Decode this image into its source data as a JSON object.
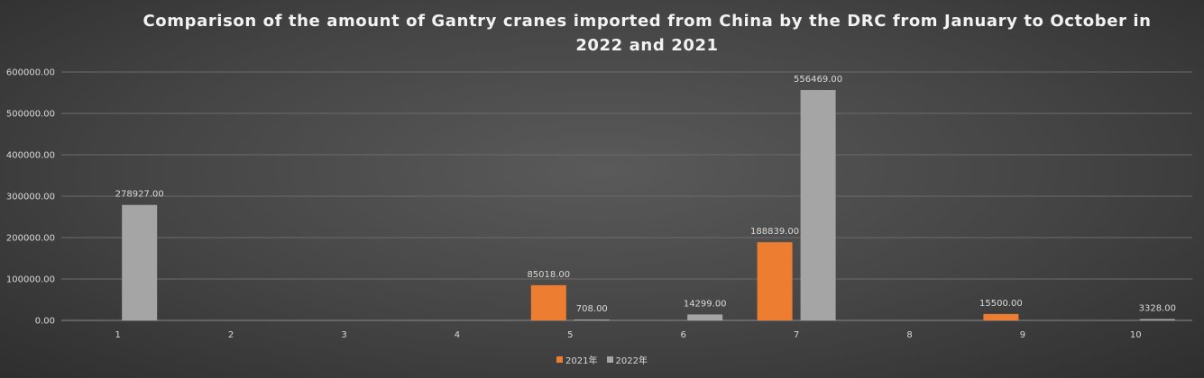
{
  "chart_data": {
    "type": "bar",
    "title": "Comparison of the amount of Gantry cranes imported from China by the DRC from January to October in 2022 and 2021",
    "categories": [
      "1",
      "2",
      "3",
      "4",
      "5",
      "6",
      "7",
      "8",
      "9",
      "10"
    ],
    "series": [
      {
        "name": "2021年",
        "color": "#ed7d31",
        "values": [
          null,
          null,
          null,
          null,
          85018.0,
          null,
          188839.0,
          null,
          15500.0,
          null
        ],
        "labels": [
          "",
          "",
          "",
          "",
          "85018.00",
          "",
          "188839.00",
          "",
          "15500.00",
          ""
        ]
      },
      {
        "name": "2022年",
        "color": "#a5a5a5",
        "values": [
          278927.0,
          null,
          null,
          null,
          708.0,
          14299.0,
          556469.0,
          null,
          null,
          3328.0
        ],
        "labels": [
          "278927.00",
          "",
          "",
          "",
          "708.00",
          "14299.00",
          "556469.00",
          "",
          "",
          "3328.00"
        ]
      }
    ],
    "ylim": [
      0,
      600000
    ],
    "yticks": [
      "0.00",
      "100000.00",
      "200000.00",
      "300000.00",
      "400000.00",
      "500000.00",
      "600000.00"
    ],
    "xlabel": "",
    "ylabel": "",
    "grid": true,
    "legend_position": "bottom"
  }
}
